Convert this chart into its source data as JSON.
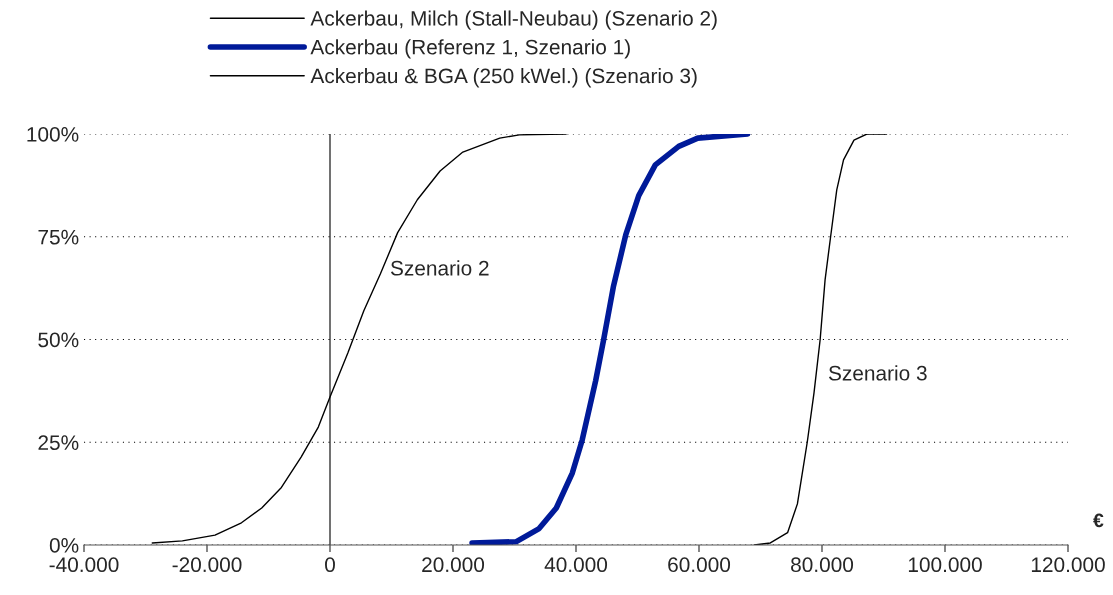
{
  "chart_data": {
    "type": "line",
    "xlabel": "€",
    "xlim": [
      -40000,
      120000
    ],
    "xticks": [
      {
        "value": -40000,
        "label": "-40.000"
      },
      {
        "value": -20000,
        "label": "-20.000"
      },
      {
        "value": 0,
        "label": "0"
      },
      {
        "value": 20000,
        "label": "20.000"
      },
      {
        "value": 40000,
        "label": "40.000"
      },
      {
        "value": 60000,
        "label": "60.000"
      },
      {
        "value": 80000,
        "label": "80.000"
      },
      {
        "value": 100000,
        "label": "100.000"
      },
      {
        "value": 120000,
        "label": "120.000"
      }
    ],
    "ylim": [
      0,
      100
    ],
    "yticks": [
      {
        "value": 0,
        "label": "0%"
      },
      {
        "value": 25,
        "label": "25%"
      },
      {
        "value": 50,
        "label": "50%"
      },
      {
        "value": 75,
        "label": "75%"
      },
      {
        "value": 100,
        "label": "100%"
      }
    ],
    "grid": "y",
    "legend": "top",
    "series": [
      {
        "name": "Ackerbau, Milch (Stall-Neubau) (Szenario 2)",
        "color": "#000000",
        "x": [
          -28900,
          -24000,
          -18700,
          -14400,
          -11100,
          -7900,
          -4700,
          -1900,
          0,
          2900,
          5500,
          8200,
          11000,
          14200,
          17900,
          21600,
          27600,
          30800,
          38400
        ],
        "values": [
          0.5,
          1,
          2.4,
          5.4,
          9,
          14,
          21.4,
          28.7,
          36,
          46.7,
          57,
          66,
          76,
          84,
          91,
          95.6,
          99,
          99.8,
          100
        ]
      },
      {
        "name": "Ackerbau (Referenz 1, Szenario 1)",
        "color": "#001a99",
        "x": [
          23100,
          30300,
          34000,
          36800,
          39400,
          41000,
          43200,
          44500,
          46100,
          48100,
          50200,
          52900,
          56700,
          59800,
          67900
        ],
        "values": [
          0.5,
          0.8,
          4,
          9,
          17.5,
          25.5,
          40,
          50,
          63,
          75.5,
          85,
          92.5,
          97,
          99,
          100
        ]
      },
      {
        "name": "Ackerbau & BGA (250 kWel.) (Szenario 3)",
        "color": "#000000",
        "x": [
          69000,
          71600,
          74400,
          76000,
          77600,
          78700,
          79700,
          80500,
          81400,
          82400,
          83500,
          85200,
          87300,
          90500
        ],
        "values": [
          0,
          0.5,
          3,
          10,
          25,
          37,
          50,
          64.5,
          75,
          86.4,
          93.7,
          98.5,
          100,
          100
        ]
      }
    ],
    "ref_lines": [
      {
        "axis": "x",
        "value": 0,
        "color": "#000000"
      }
    ],
    "annotations": [
      "Szenario 2",
      "Szenario 3"
    ]
  }
}
